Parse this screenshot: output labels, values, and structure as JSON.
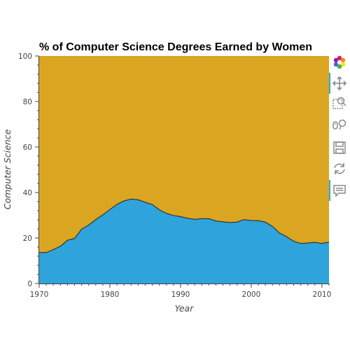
{
  "chart_data": {
    "type": "area",
    "title": "% of Computer Science Degrees Earned by Women",
    "xlabel": "Year",
    "ylabel": "Computer Science",
    "xlim": [
      1970,
      2011
    ],
    "ylim": [
      0,
      100
    ],
    "x_ticks": [
      1970,
      1980,
      1990,
      2000,
      2010
    ],
    "y_ticks": [
      0,
      20,
      40,
      60,
      80,
      100
    ],
    "grid": false,
    "series": [
      {
        "values": [
          13.6,
          13.6,
          14.9,
          16.4,
          19.0,
          19.8,
          23.9,
          25.7,
          28.1,
          30.2,
          32.5,
          34.8,
          36.3,
          37.1,
          36.8,
          35.7,
          34.7,
          32.4,
          30.8,
          29.9,
          29.4,
          28.7,
          28.2,
          28.5,
          28.5,
          27.5,
          27.1,
          26.8,
          27.0,
          28.1,
          27.7,
          27.6,
          27.0,
          25.1,
          22.2,
          20.6,
          18.6,
          17.6,
          17.8,
          18.1,
          17.6,
          18.2
        ],
        "color": "#2ea3dc"
      }
    ],
    "x": [
      1970,
      1971,
      1972,
      1973,
      1974,
      1975,
      1976,
      1977,
      1978,
      1979,
      1980,
      1981,
      1982,
      1983,
      1984,
      1985,
      1986,
      1987,
      1988,
      1989,
      1990,
      1991,
      1992,
      1993,
      1994,
      1995,
      1996,
      1997,
      1998,
      1999,
      2000,
      2001,
      2002,
      2003,
      2004,
      2005,
      2006,
      2007,
      2008,
      2009,
      2010,
      2011
    ],
    "remainder_color": "#daa520"
  },
  "toolbar": {
    "tools": [
      {
        "name": "bokeh-logo-icon",
        "interactable": false
      },
      {
        "name": "pan-icon",
        "interactable": true
      },
      {
        "name": "box-zoom-icon",
        "interactable": true
      },
      {
        "name": "wheel-zoom-icon",
        "interactable": true
      },
      {
        "name": "save-icon",
        "interactable": true
      },
      {
        "name": "reset-icon",
        "interactable": true
      },
      {
        "name": "hover-icon",
        "interactable": true
      }
    ]
  }
}
